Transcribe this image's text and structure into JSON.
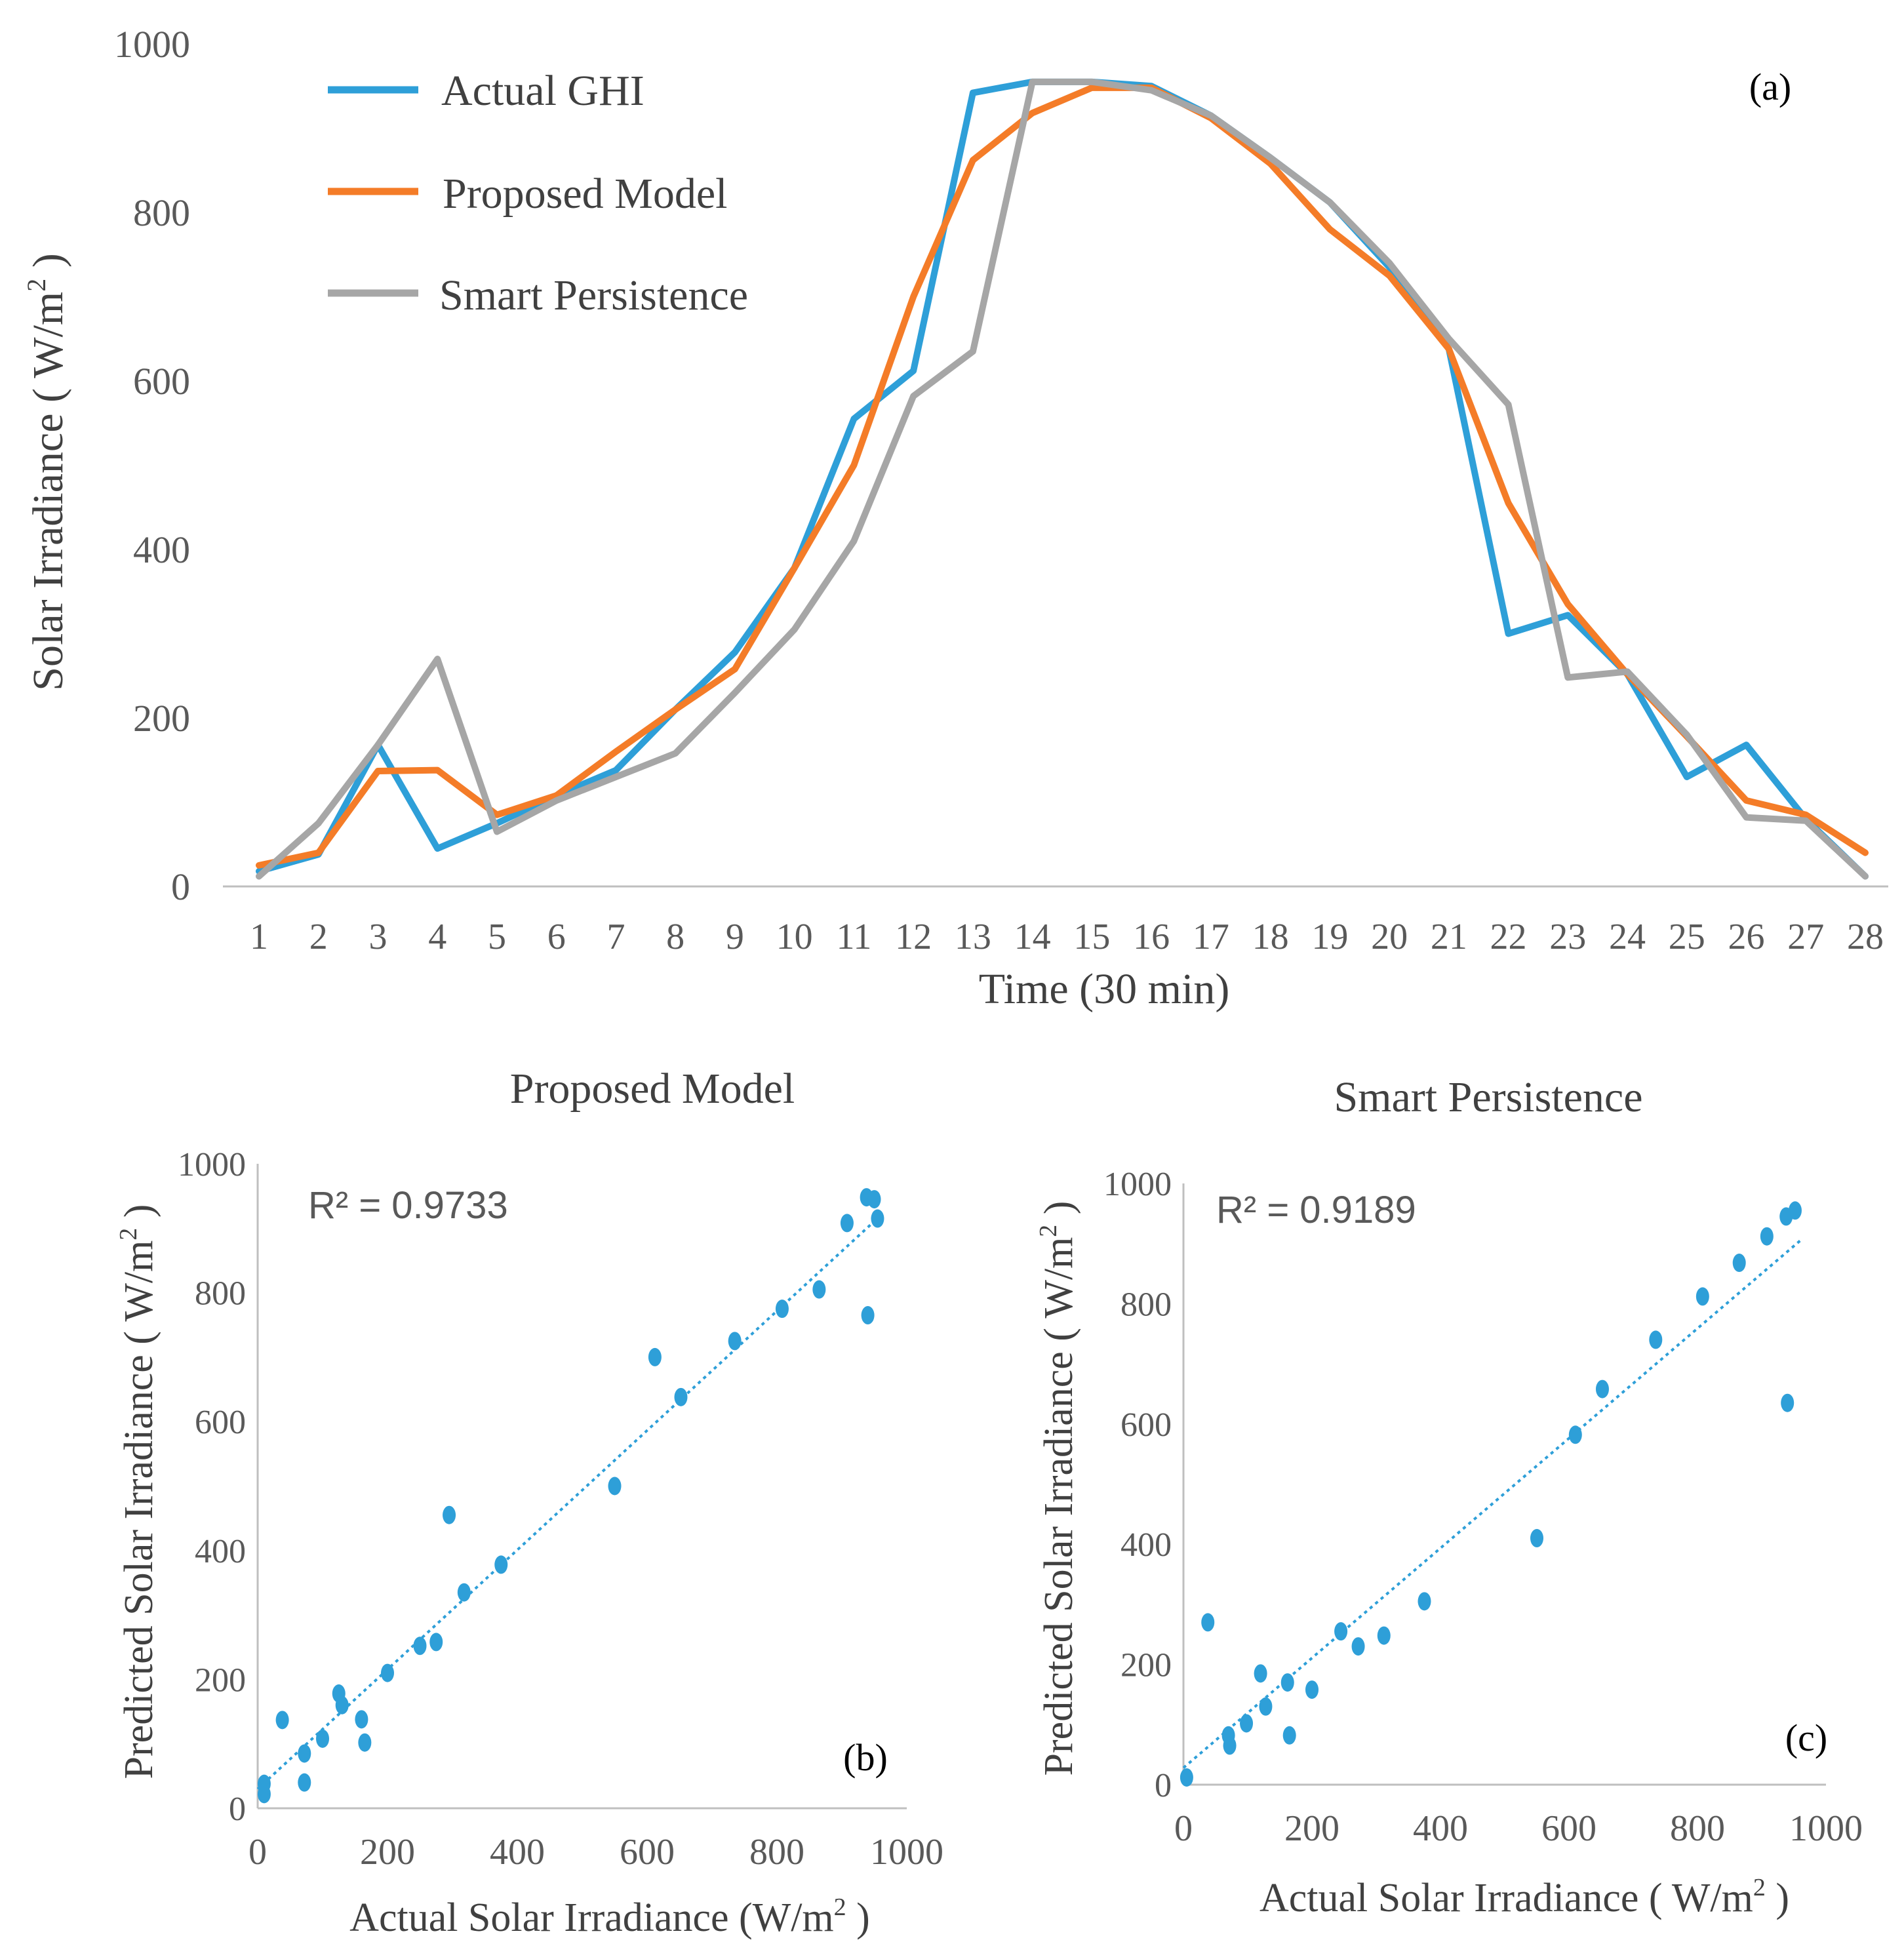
{
  "chart_data": [
    {
      "id": "a",
      "type": "line",
      "panel_label": "(a)",
      "title": "",
      "xlabel": "Time (30 min)",
      "ylabel_main": "Solar Irradiance ( W/m",
      "ylabel_sup": "2",
      "ylabel_tail": " )",
      "xlim": [
        1,
        28
      ],
      "ylim": [
        0,
        1000
      ],
      "yticks": [
        0,
        200,
        400,
        600,
        800,
        1000
      ],
      "x": [
        1,
        2,
        3,
        4,
        5,
        6,
        7,
        8,
        9,
        10,
        11,
        12,
        13,
        14,
        15,
        16,
        17,
        18,
        19,
        20,
        21,
        22,
        23,
        24,
        25,
        26,
        27,
        28
      ],
      "series": [
        {
          "name": "Actual GHI",
          "color": "#2e9fd8",
          "values": [
            18,
            38,
            168,
            45,
            75,
            108,
            138,
            210,
            278,
            378,
            555,
            612,
            942,
            955,
            955,
            950,
            915,
            865,
            812,
            735,
            638,
            300,
            322,
            252,
            130,
            168,
            80,
            12
          ]
        },
        {
          "name": "Proposed Model",
          "color": "#f47c28",
          "values": [
            25,
            40,
            137,
            138,
            85,
            108,
            160,
            210,
            258,
            378,
            500,
            700,
            862,
            918,
            948,
            948,
            912,
            858,
            780,
            725,
            638,
            455,
            335,
            252,
            178,
            102,
            85,
            40
          ]
        },
        {
          "name": "Smart Persistence",
          "color": "#a6a6a6",
          "values": [
            12,
            75,
            168,
            270,
            65,
            102,
            130,
            158,
            230,
            305,
            410,
            582,
            635,
            955,
            955,
            945,
            915,
            865,
            812,
            740,
            650,
            572,
            248,
            255,
            180,
            82,
            78,
            12
          ]
        }
      ]
    },
    {
      "id": "b",
      "type": "scatter",
      "panel_label": "(b)",
      "title": "Proposed Model",
      "annotation": "R² = 0.9733",
      "xlabel_main": "Actual Solar Irradiance (W/m",
      "xlabel_sup": "2",
      "xlabel_tail": " )",
      "ylabel_main": "Predicted Solar Irradiance ( W/m",
      "ylabel_sup": "2",
      "ylabel_tail": " )",
      "xlim": [
        0,
        1000
      ],
      "ylim": [
        0,
        1000
      ],
      "xticks": [
        0,
        200,
        400,
        600,
        800,
        1000
      ],
      "yticks": [
        0,
        200,
        400,
        600,
        800,
        1000
      ],
      "trendline": {
        "x": [
          0,
          960
        ],
        "y": [
          30,
          920
        ],
        "color": "#2e9fd8"
      },
      "points": {
        "color": "#2e9fd8",
        "x": [
          10,
          10,
          38,
          72,
          72,
          100,
          125,
          130,
          160,
          165,
          200,
          250,
          275,
          295,
          318,
          375,
          550,
          612,
          652,
          735,
          808,
          865,
          908,
          938,
          940,
          950,
          955
        ],
        "y": [
          38,
          22,
          137,
          85,
          40,
          108,
          178,
          160,
          138,
          102,
          210,
          252,
          258,
          455,
          335,
          378,
          500,
          700,
          638,
          725,
          775,
          805,
          908,
          948,
          765,
          945,
          915
        ]
      }
    },
    {
      "id": "c",
      "type": "scatter",
      "panel_label": "(c)",
      "title": "Smart Persistence",
      "annotation": "R² = 0.9189",
      "xlabel_main": "Actual Solar Irradiance ( W/m",
      "xlabel_sup": "2",
      "xlabel_tail": " )",
      "ylabel_main": "Predicted Solar Irradiance ( W/m",
      "ylabel_sup": "2",
      "ylabel_tail": " )",
      "xlim": [
        0,
        1000
      ],
      "ylim": [
        0,
        1000
      ],
      "xticks": [
        0,
        200,
        400,
        600,
        800,
        1000
      ],
      "yticks": [
        0,
        200,
        400,
        600,
        800,
        1000
      ],
      "trendline": {
        "x": [
          0,
          960
        ],
        "y": [
          28,
          905
        ],
        "color": "#2e9fd8"
      },
      "points": {
        "color": "#2e9fd8",
        "x": [
          5,
          38,
          70,
          72,
          98,
          120,
          128,
          162,
          165,
          200,
          245,
          272,
          312,
          375,
          550,
          610,
          652,
          735,
          808,
          865,
          908,
          938,
          940,
          952
        ],
        "y": [
          12,
          270,
          82,
          65,
          102,
          185,
          130,
          170,
          82,
          158,
          255,
          230,
          248,
          305,
          410,
          582,
          658,
          740,
          812,
          868,
          912,
          945,
          635,
          955
        ]
      }
    }
  ]
}
